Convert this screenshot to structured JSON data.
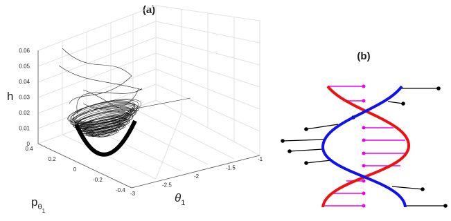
{
  "panel_a": {
    "title": "(a)",
    "z_label": "h",
    "y_label_main": "p",
    "y_label_sub1": "θ",
    "y_label_sub2": "1",
    "x_label_main": "θ",
    "x_label_sub": "1",
    "z_ticks": [
      "0.06",
      "0.05",
      "0.04",
      "0.03",
      "0.02",
      "0.01",
      "0"
    ],
    "y_ticks": [
      "0.4",
      "0.2",
      "0",
      "-0.2",
      "-0.4"
    ],
    "x_ticks": [
      "-3",
      "-2.5",
      "-2",
      "-1.5",
      "-1"
    ]
  },
  "panel_b": {
    "title": "(b)"
  }
}
